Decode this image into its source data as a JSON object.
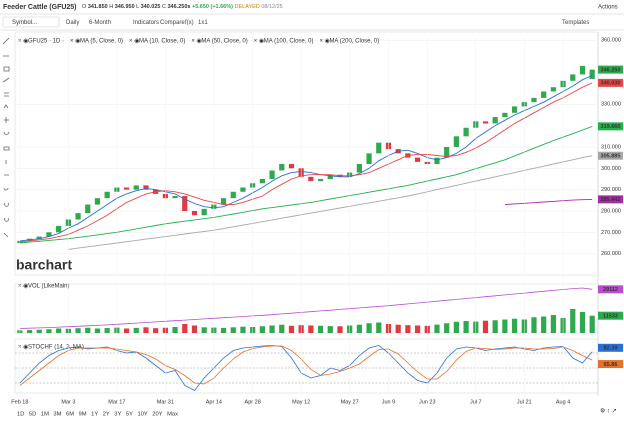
{
  "header": {
    "title": "Feeder Cattle (GFU25)",
    "quote": [
      "O",
      "341.850",
      "H",
      "346.950",
      "L",
      "340.025",
      "C",
      "346.250s",
      "+5.650 (+1.66%)",
      "DELAYED",
      "08/12/25"
    ],
    "actions": "Actions"
  },
  "toolbar": {
    "search": "Symbol...",
    "interval": "Daily",
    "period": "6-Month",
    "indicators": "Indicators",
    "compare": "Compare",
    "fx": "f(x)",
    "layout": "1x1",
    "templates": "Templates"
  },
  "watermark": "barchart",
  "ranges": [
    "1D",
    "5D",
    "1M",
    "3M",
    "6M",
    "9M",
    "1Y",
    "2Y",
    "3Y",
    "5Y",
    "10Y",
    "20Y",
    "Max"
  ],
  "chart_data": [
    {
      "type": "candlestick",
      "symbol_label": "GFU25 · 1D ·",
      "up_color": "#2fa84f",
      "down_color": "#e0393e",
      "open": [
        265,
        266,
        267,
        268,
        270,
        273,
        276,
        279,
        283,
        286,
        289,
        291,
        290,
        292,
        290,
        288,
        286,
        287,
        280,
        278,
        281,
        283,
        286,
        289,
        291,
        293,
        295,
        299,
        302,
        300,
        296,
        294,
        295,
        297,
        296,
        298,
        302,
        307,
        312,
        309,
        307,
        305,
        303,
        302,
        305,
        310,
        315,
        319,
        322,
        321,
        324,
        326,
        329,
        331,
        333,
        336,
        338,
        341,
        344,
        341.85
      ],
      "close": [
        266,
        267,
        268,
        270,
        273,
        276,
        279,
        283,
        286,
        289,
        291,
        290,
        292,
        290,
        288,
        286,
        287,
        280,
        278,
        281,
        283,
        286,
        289,
        291,
        293,
        295,
        299,
        302,
        300,
        296,
        294,
        295,
        297,
        296,
        298,
        302,
        307,
        312,
        309,
        307,
        305,
        303,
        302,
        305,
        310,
        315,
        319,
        322,
        321,
        324,
        326,
        329,
        331,
        333,
        336,
        338,
        341,
        344,
        348,
        346.25
      ],
      "close_tag": "346.250",
      "lines": [
        {
          "name": "MA (5, Close, 0)",
          "color": "#2a6fd6",
          "values": [
            266,
            266.5,
            267,
            268,
            269.5,
            272,
            274,
            277,
            280,
            283,
            286,
            288,
            289.5,
            290.5,
            290,
            289,
            288,
            285.5,
            283.5,
            282,
            281.5,
            282,
            284,
            286,
            288.5,
            291,
            294,
            296.5,
            298,
            298.5,
            298,
            297,
            296.5,
            296,
            296,
            297.5,
            300,
            303.5,
            306,
            308,
            308.5,
            307,
            305,
            304,
            305,
            307,
            310,
            314,
            317,
            320,
            322.5,
            325,
            327,
            329,
            331,
            333.5,
            336,
            338.5,
            341.5,
            343.5
          ]
        },
        {
          "name": "MA (10, Close, 0)",
          "color": "#e84545",
          "tag": "340.030",
          "values": [
            265.5,
            266,
            266.5,
            267,
            268,
            269,
            271,
            273,
            275.5,
            278,
            281,
            284,
            286,
            288,
            289,
            289.5,
            289,
            288,
            286.5,
            285,
            284,
            283,
            283,
            284,
            285.5,
            287,
            290,
            292.5,
            295,
            296.5,
            297,
            297,
            297,
            296.5,
            296.5,
            297,
            298,
            300,
            302,
            304,
            306,
            306.5,
            306.5,
            306,
            305.5,
            306,
            307.5,
            309.5,
            312,
            315,
            318,
            321,
            323.5,
            326,
            328.5,
            331,
            333,
            335.5,
            338,
            340.03
          ]
        },
        {
          "name": "MA (50, Close, 0)",
          "color": "#22b14c",
          "tag": "319.660",
          "values": [
            265,
            265.4,
            265.8,
            266.2,
            266.6,
            267,
            267.6,
            268.2,
            268.8,
            269.4,
            270,
            270.8,
            271.6,
            272.4,
            273.2,
            274,
            274.6,
            275.2,
            275.8,
            276.4,
            277,
            277.8,
            278.6,
            279.4,
            280.2,
            281,
            281.6,
            282.2,
            282.8,
            283.4,
            284,
            284.8,
            285.6,
            286.4,
            287.2,
            288,
            288.8,
            289.6,
            290.4,
            291.2,
            292,
            293,
            294,
            295,
            296,
            297,
            298.4,
            299.8,
            301.2,
            302.6,
            304,
            305.8,
            307.6,
            309.4,
            311.2,
            313,
            314.6,
            316.2,
            317.9,
            319.66
          ]
        },
        {
          "name": "MA (100, Close, 0)",
          "color": "#a8a8a8",
          "tag": "305.885",
          "values": [
            null,
            null,
            null,
            null,
            null,
            262,
            262.6,
            263.2,
            263.8,
            264.4,
            265,
            265.6,
            266.2,
            266.8,
            267.4,
            268,
            268.6,
            269.2,
            269.8,
            270.4,
            271,
            271.8,
            272.6,
            273.4,
            274.2,
            275,
            275.8,
            276.6,
            277.4,
            278.2,
            279,
            279.8,
            280.6,
            281.4,
            282.2,
            283,
            283.8,
            284.6,
            285.4,
            286.2,
            287,
            288,
            289,
            290,
            291,
            292,
            293,
            294,
            295,
            296,
            297,
            298,
            299,
            300,
            301,
            302,
            303,
            304,
            305,
            305.885
          ]
        },
        {
          "name": "MA (200, Close, 0)",
          "color": "#a52ea5",
          "tag": "285.442",
          "values": [
            null,
            null,
            null,
            null,
            null,
            null,
            null,
            null,
            null,
            null,
            null,
            null,
            null,
            null,
            null,
            null,
            null,
            null,
            null,
            null,
            null,
            null,
            null,
            null,
            null,
            null,
            null,
            null,
            null,
            null,
            null,
            null,
            null,
            null,
            null,
            null,
            null,
            null,
            null,
            null,
            null,
            null,
            null,
            null,
            null,
            null,
            null,
            null,
            null,
            null,
            283,
            283.3,
            283.6,
            283.9,
            284.2,
            284.5,
            284.8,
            285.1,
            285.3,
            285.442
          ]
        }
      ],
      "ylim": [
        250,
        362
      ],
      "yticks": [
        {
          "value": 260,
          "label": "260.000"
        },
        {
          "value": 270,
          "label": "270.000"
        },
        {
          "value": 280,
          "label": "280.000"
        },
        {
          "value": 290,
          "label": "290.000"
        },
        {
          "value": 300,
          "label": "300.000"
        },
        {
          "value": 310,
          "label": "310.000"
        },
        {
          "value": 330,
          "label": "330.000"
        },
        {
          "value": 360,
          "label": "360.000"
        }
      ],
      "xlim": [
        -0.5,
        59.6
      ]
    },
    {
      "type": "bar",
      "title": "VOL (LikeMain)",
      "values": [
        1800,
        2000,
        2200,
        2500,
        3000,
        2800,
        3200,
        3500,
        3000,
        3300,
        3600,
        3000,
        3400,
        3800,
        3200,
        3500,
        4000,
        6000,
        5000,
        3800,
        3600,
        3400,
        3800,
        4200,
        4000,
        4500,
        5000,
        5500,
        4800,
        5200,
        5000,
        4800,
        4600,
        4500,
        5000,
        5500,
        6500,
        7000,
        6000,
        5500,
        5200,
        5000,
        4800,
        5600,
        6500,
        7500,
        8000,
        7600,
        8200,
        8500,
        9000,
        9500,
        9000,
        10500,
        11000,
        12000,
        10000,
        16000,
        14000,
        11533
      ],
      "line": {
        "color": "#b54fd0",
        "values": [
          3000,
          3200,
          3400,
          3600,
          3900,
          4200,
          4500,
          4800,
          5100,
          5400,
          5800,
          6200,
          6600,
          7000,
          7400,
          7800,
          8200,
          8600,
          9000,
          9400,
          9800,
          10200,
          10600,
          11000,
          11400,
          11800,
          12200,
          12700,
          13200,
          13700,
          14200,
          14700,
          15200,
          15700,
          16200,
          16700,
          17200,
          17700,
          18200,
          18800,
          19400,
          20000,
          20600,
          21200,
          21800,
          22400,
          23000,
          23600,
          24200,
          24800,
          25400,
          26000,
          26600,
          27200,
          27800,
          28400,
          29000,
          29600,
          30000,
          29112
        ]
      },
      "ylim": [
        0,
        30000
      ],
      "xlim": [
        -0.5,
        59.6
      ]
    },
    {
      "type": "line",
      "title": "STOCHF (14, 3, MA)",
      "series": [
        {
          "color": "#2a6fd6",
          "values": [
            20,
            40,
            60,
            75,
            85,
            90,
            92,
            88,
            90,
            92,
            85,
            80,
            82,
            70,
            55,
            40,
            45,
            15,
            5,
            30,
            50,
            70,
            85,
            90,
            92,
            94,
            95,
            93,
            70,
            40,
            30,
            35,
            50,
            45,
            55,
            75,
            90,
            95,
            80,
            60,
            40,
            25,
            20,
            40,
            70,
            88,
            92,
            90,
            85,
            88,
            90,
            92,
            88,
            85,
            90,
            92,
            93,
            70,
            60,
            82.39
          ]
        },
        {
          "color": "#e8702a",
          "values": [
            15,
            30,
            45,
            60,
            75,
            85,
            90,
            90,
            90,
            90,
            88,
            85,
            82,
            77,
            68,
            55,
            47,
            35,
            20,
            18,
            30,
            50,
            68,
            82,
            89,
            92,
            94,
            94,
            85,
            68,
            47,
            35,
            38,
            43,
            50,
            58,
            73,
            87,
            88,
            78,
            60,
            42,
            28,
            28,
            43,
            66,
            83,
            90,
            89,
            87,
            88,
            90,
            90,
            88,
            88,
            89,
            92,
            85,
            75,
            65.86
          ]
        }
      ],
      "levels": [
        20,
        50,
        80
      ],
      "ylim": [
        0,
        100
      ],
      "xlim": [
        -0.5,
        59.6
      ],
      "categories": [
        "Feb 18",
        null,
        null,
        null,
        null,
        "Mar 3",
        null,
        null,
        null,
        null,
        "Mar 17",
        null,
        null,
        null,
        null,
        "Mar 31",
        null,
        null,
        null,
        null,
        "Apr 14",
        null,
        null,
        null,
        "Apr 28",
        null,
        null,
        null,
        null,
        "May 12",
        null,
        null,
        null,
        null,
        "May 27",
        null,
        null,
        null,
        "Jun 9",
        null,
        null,
        null,
        "Jun 23",
        null,
        null,
        null,
        null,
        "Jul 7",
        null,
        null,
        null,
        null,
        "Jul 21",
        null,
        null,
        null,
        "Aug 4",
        null,
        null,
        null
      ]
    }
  ]
}
